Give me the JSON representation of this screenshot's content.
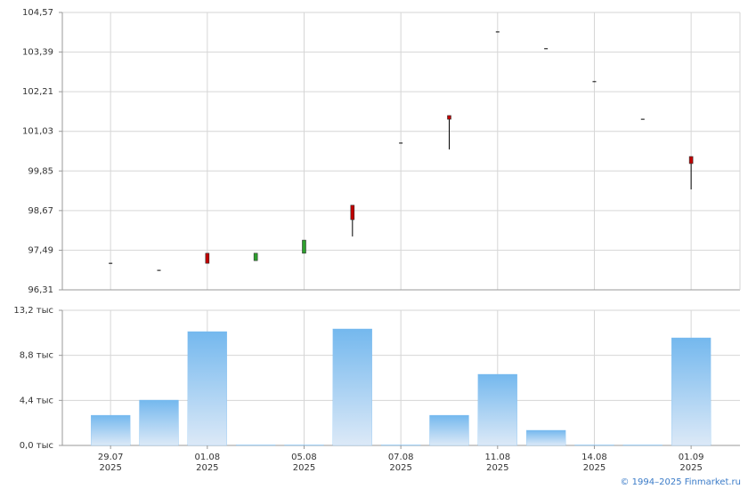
{
  "chart_data": [
    {
      "type": "candlestick",
      "categories": [
        [
          "29.07",
          "2025"
        ],
        null,
        [
          "01.08",
          "2025"
        ],
        null,
        [
          "05.08",
          "2025"
        ],
        null,
        [
          "07.08",
          "2025"
        ],
        null,
        [
          "11.08",
          "2025"
        ],
        null,
        [
          "14.08",
          "2025"
        ],
        null,
        [
          "01.09",
          "2025"
        ]
      ],
      "open": [
        97.1,
        96.89,
        97.4,
        97.18,
        97.4,
        98.83,
        100.68,
        101.5,
        103.99,
        103.49,
        102.51,
        101.39,
        100.28
      ],
      "high": [
        97.1,
        96.89,
        97.4,
        97.4,
        97.79,
        98.83,
        100.68,
        101.5,
        103.99,
        103.49,
        102.51,
        101.39,
        100.28
      ],
      "low": [
        97.1,
        96.89,
        97.1,
        97.18,
        97.4,
        97.9,
        100.68,
        100.49,
        103.99,
        103.49,
        102.51,
        101.39,
        99.3
      ],
      "close": [
        97.1,
        96.89,
        97.1,
        97.4,
        97.79,
        98.4,
        100.68,
        101.39,
        103.99,
        103.49,
        102.51,
        101.39,
        100.07
      ],
      "up_color": "#2ea02e",
      "down_color": "#c00000",
      "ylim": [
        96.31,
        104.57
      ],
      "yticks": [
        {
          "value": 96.31,
          "label": "96,31"
        },
        {
          "value": 97.49,
          "label": "97,49"
        },
        {
          "value": 98.67,
          "label": "98,67"
        },
        {
          "value": 99.85,
          "label": "99,85"
        },
        {
          "value": 101.03,
          "label": "101,03"
        },
        {
          "value": 102.21,
          "label": "102,21"
        },
        {
          "value": 103.39,
          "label": "103,39"
        },
        {
          "value": 104.57,
          "label": "104,57"
        }
      ],
      "grid": true
    },
    {
      "type": "bar",
      "values": [
        2.95,
        4.43,
        11.12,
        0.05,
        0.05,
        11.38,
        0.05,
        2.95,
        6.95,
        1.48,
        0.05,
        0.05,
        10.51
      ],
      "color": "#7bbcf0",
      "ylim": [
        0,
        13.2
      ],
      "yticks": [
        {
          "value": 0,
          "label": "0,0 тыс"
        },
        {
          "value": 4.4,
          "label": "4,4 тыс"
        },
        {
          "value": 8.8,
          "label": "8,8 тыс"
        },
        {
          "value": 13.2,
          "label": "13,2 тыс"
        }
      ],
      "grid": true
    }
  ],
  "footer": "© 1994–2025 Finmarket.ru"
}
